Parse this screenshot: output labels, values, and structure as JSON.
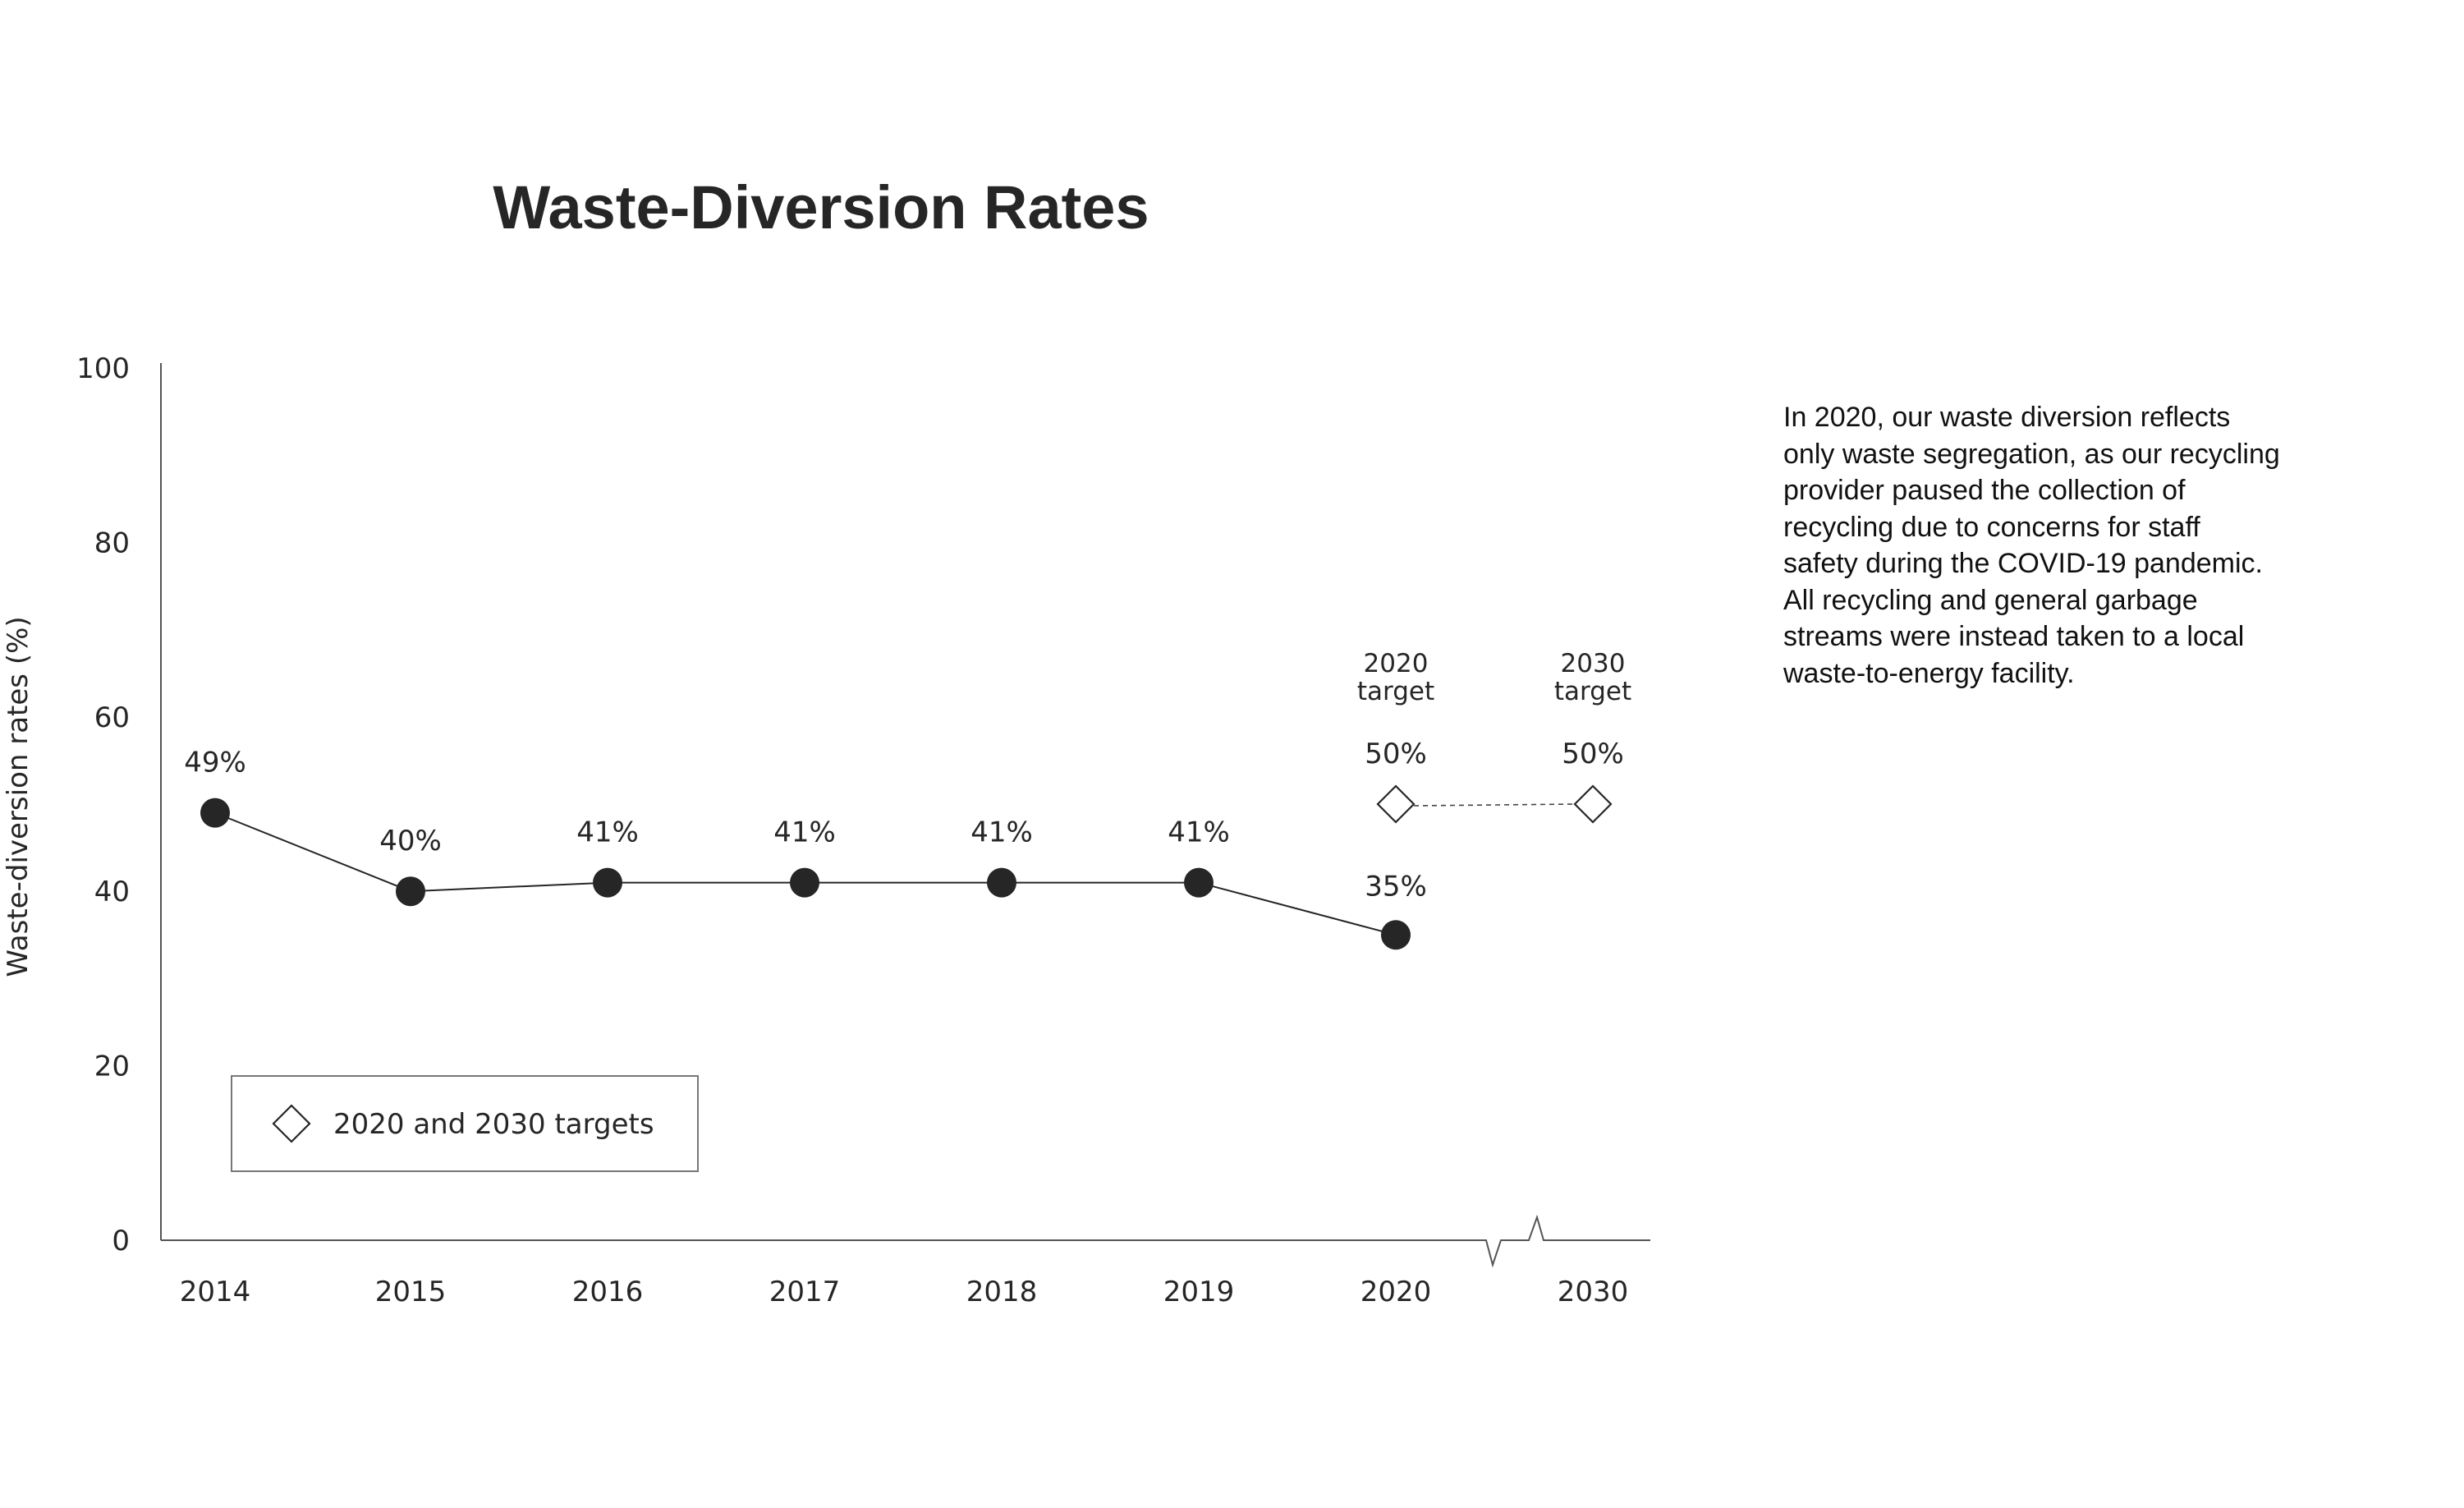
{
  "chart_data": {
    "type": "line",
    "title": "Waste-Diversion Rates",
    "ylabel": "Waste-diversion rates (%)",
    "xlabel": "",
    "ylim": [
      0,
      100
    ],
    "yticks": [
      "0",
      "20",
      "40",
      "60",
      "80",
      "100"
    ],
    "grid": false,
    "categories": [
      "2014",
      "2015",
      "2016",
      "2017",
      "2018",
      "2019",
      "2020",
      "2030"
    ],
    "series": [
      {
        "x": [
          "2014",
          "2015",
          "2016",
          "2017",
          "2018",
          "2019",
          "2020"
        ],
        "values": [
          49,
          40,
          41,
          41,
          41,
          41,
          35
        ],
        "labels": [
          "49%",
          "40%",
          "41%",
          "41%",
          "41%",
          "41%",
          "35%"
        ],
        "marker": "filled-circle",
        "color": "#262626"
      },
      {
        "name": "2020 and 2030 targets",
        "x": [
          "2020",
          "2030"
        ],
        "values": [
          50,
          50
        ],
        "labels": [
          "50%",
          "50%"
        ],
        "marker": "open-diamond",
        "line": "dashed",
        "annotations": [
          [
            "2020",
            "target"
          ],
          [
            "2030",
            "target"
          ]
        ]
      }
    ],
    "legend": {
      "entries": [
        "2020 and 2030 targets"
      ],
      "placement": "bottom-left"
    },
    "axis_break": "between 2020 and 2030"
  },
  "note": {
    "lines": [
      "In 2020, our waste diversion reflects",
      "only waste segregation, as our recycling",
      "provider paused the collection of",
      "recycling due to concerns for staff",
      "safety during the COVID-19 pandemic.",
      "All recycling and general garbage",
      "streams were instead taken to a local",
      "waste-to-energy facility."
    ]
  },
  "colors": {
    "ink": "#262626",
    "axis": "#555555",
    "background": "#ffffff"
  }
}
